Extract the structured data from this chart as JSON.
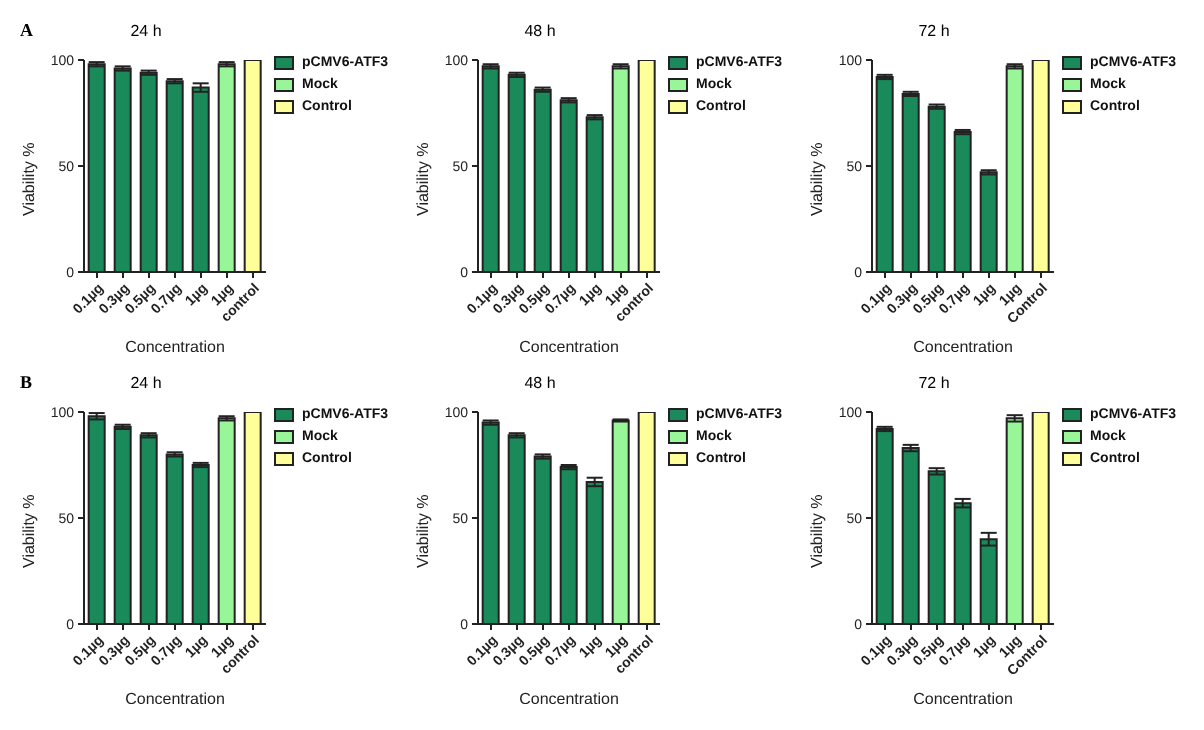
{
  "chart_data": [
    {
      "type": "bar",
      "title": "24 h",
      "xlabel": "Concentration",
      "ylabel": "Viability %",
      "annotations": [
        "A"
      ],
      "categories": [
        "0.1µg",
        "0.3µg",
        "0.5µg",
        "0.7µg",
        "1µg",
        "1µg",
        "control"
      ],
      "stacked": true,
      "ylim": [
        0,
        100
      ],
      "yticks": [
        0,
        50,
        100
      ],
      "grid": false,
      "legend": "top right",
      "series": [
        {
          "name": "pCMV6-ATF3",
          "color": "#1b8a5a",
          "values": [
            98,
            96,
            94,
            90,
            87,
            null,
            null
          ],
          "errors": [
            1,
            1,
            1,
            1,
            2,
            null,
            null
          ]
        },
        {
          "name": "Mock",
          "color": "#98f598",
          "values": [
            null,
            null,
            null,
            null,
            null,
            98,
            null
          ],
          "errors": [
            null,
            null,
            null,
            null,
            null,
            1,
            null
          ]
        },
        {
          "name": "Control",
          "color": "#ffff99",
          "values": [
            null,
            null,
            null,
            null,
            null,
            null,
            100
          ]
        }
      ]
    },
    {
      "type": "bar",
      "title": "48 h",
      "xlabel": "Concentration",
      "ylabel": "Viability %",
      "categories": [
        "0.1µg",
        "0.3µg",
        "0.5µg",
        "0.7µg",
        "1µg",
        "1µg",
        "control"
      ],
      "stacked": true,
      "ylim": [
        0,
        100
      ],
      "yticks": [
        0,
        50,
        100
      ],
      "grid": false,
      "legend": "top right",
      "series": [
        {
          "name": "pCMV6-ATF3",
          "color": "#1b8a5a",
          "values": [
            97,
            93,
            86,
            81,
            73,
            null,
            null
          ],
          "errors": [
            1,
            1,
            1,
            1,
            1,
            null,
            null
          ]
        },
        {
          "name": "Mock",
          "color": "#98f598",
          "values": [
            null,
            null,
            null,
            null,
            null,
            97,
            null
          ],
          "errors": [
            null,
            null,
            null,
            null,
            null,
            1,
            null
          ]
        },
        {
          "name": "Control",
          "color": "#ffff99",
          "values": [
            null,
            null,
            null,
            null,
            null,
            null,
            100
          ]
        }
      ]
    },
    {
      "type": "bar",
      "title": "72 h",
      "xlabel": "Concentration",
      "ylabel": "Viability %",
      "categories": [
        "0.1µg",
        "0.3µg",
        "0.5µg",
        "0.7µg",
        "1µg",
        "1µg",
        "Control"
      ],
      "stacked": true,
      "ylim": [
        0,
        100
      ],
      "yticks": [
        0,
        50,
        100
      ],
      "grid": false,
      "legend": "top right",
      "series": [
        {
          "name": "pCMV6-ATF3",
          "color": "#1b8a5a",
          "values": [
            92,
            84,
            78,
            66,
            47,
            null,
            null
          ],
          "errors": [
            1,
            1,
            1,
            1,
            1,
            null,
            null
          ]
        },
        {
          "name": "Mock",
          "color": "#98f598",
          "values": [
            null,
            null,
            null,
            null,
            null,
            97,
            null
          ],
          "errors": [
            null,
            null,
            null,
            null,
            null,
            1,
            null
          ]
        },
        {
          "name": "Control",
          "color": "#ffff99",
          "values": [
            null,
            null,
            null,
            null,
            null,
            null,
            100
          ]
        }
      ]
    },
    {
      "type": "bar",
      "title": "24 h",
      "xlabel": "Concentration",
      "ylabel": "Viability %",
      "annotations": [
        "B"
      ],
      "categories": [
        "0.1µg",
        "0.3µg",
        "0.5µg",
        "0.7µg",
        "1µg",
        "1µg",
        "control"
      ],
      "stacked": true,
      "ylim": [
        0,
        100
      ],
      "yticks": [
        0,
        50,
        100
      ],
      "grid": false,
      "legend": "top right",
      "series": [
        {
          "name": "pCMV6-ATF3",
          "color": "#1b8a5a",
          "values": [
            98,
            93,
            89,
            80,
            75,
            null,
            null
          ],
          "errors": [
            1.5,
            1,
            1,
            1,
            1,
            null,
            null
          ]
        },
        {
          "name": "Mock",
          "color": "#98f598",
          "values": [
            null,
            null,
            null,
            null,
            null,
            97,
            null
          ],
          "errors": [
            null,
            null,
            null,
            null,
            null,
            1,
            null
          ]
        },
        {
          "name": "Control",
          "color": "#ffff99",
          "values": [
            null,
            null,
            null,
            null,
            null,
            null,
            100
          ]
        }
      ]
    },
    {
      "type": "bar",
      "title": "48 h",
      "xlabel": "Concentration",
      "ylabel": "Viability %",
      "categories": [
        "0.1µg",
        "0.3µg",
        "0.5µg",
        "0.7µg",
        "1µg",
        "1µg",
        "control"
      ],
      "stacked": true,
      "ylim": [
        0,
        100
      ],
      "yticks": [
        0,
        50,
        100
      ],
      "grid": false,
      "legend": "top right",
      "series": [
        {
          "name": "pCMV6-ATF3",
          "color": "#1b8a5a",
          "values": [
            95,
            89,
            79,
            74,
            67,
            null,
            null
          ],
          "errors": [
            1,
            1,
            1,
            1,
            2,
            null,
            null
          ]
        },
        {
          "name": "Mock",
          "color": "#98f598",
          "values": [
            null,
            null,
            null,
            null,
            null,
            96,
            null
          ],
          "errors": [
            null,
            null,
            null,
            null,
            null,
            0.5,
            null
          ]
        },
        {
          "name": "Control",
          "color": "#ffff99",
          "values": [
            null,
            null,
            null,
            null,
            null,
            null,
            100
          ]
        }
      ]
    },
    {
      "type": "bar",
      "title": "72 h",
      "xlabel": "Concentration",
      "ylabel": "Viability %",
      "categories": [
        "0.1µg",
        "0.3µg",
        "0.5µg",
        "0.7µg",
        "1µg",
        "1µg",
        "Control"
      ],
      "stacked": true,
      "ylim": [
        0,
        100
      ],
      "yticks": [
        0,
        50,
        100
      ],
      "grid": false,
      "legend": "top right",
      "series": [
        {
          "name": "pCMV6-ATF3",
          "color": "#1b8a5a",
          "values": [
            92,
            83,
            72,
            57,
            40,
            null,
            null
          ],
          "errors": [
            1,
            1.5,
            1.5,
            2,
            3,
            null,
            null
          ]
        },
        {
          "name": "Mock",
          "color": "#98f598",
          "values": [
            null,
            null,
            null,
            null,
            null,
            97,
            null
          ],
          "errors": [
            null,
            null,
            null,
            null,
            null,
            1.5,
            null
          ]
        },
        {
          "name": "Control",
          "color": "#ffff99",
          "values": [
            null,
            null,
            null,
            null,
            null,
            null,
            100
          ]
        }
      ]
    }
  ]
}
